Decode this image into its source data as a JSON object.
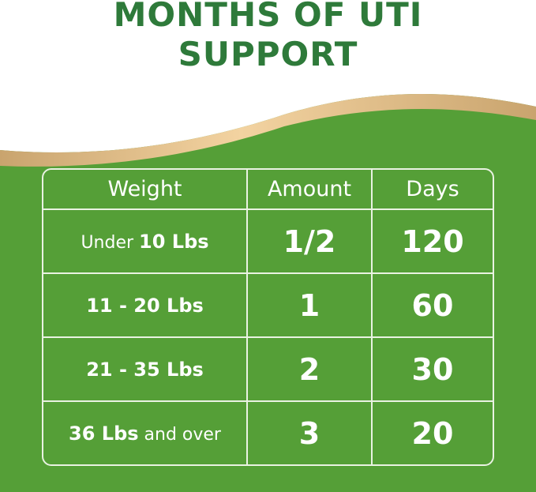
{
  "title_lines": [
    "MONTHS OF UTI",
    "SUPPORT"
  ],
  "colors": {
    "background": "#559f37",
    "title": "#2e7a3a",
    "wave": "#e8c48f"
  },
  "table": {
    "headers": [
      "Weight",
      "Amount",
      "Days"
    ],
    "rows": [
      {
        "weight_prefix": "Under ",
        "weight_bold": "10 Lbs",
        "weight_suffix": "",
        "amount": "1/2",
        "days": "120"
      },
      {
        "weight_prefix": "",
        "weight_bold": "11 - 20 Lbs",
        "weight_suffix": "",
        "amount": "1",
        "days": "60"
      },
      {
        "weight_prefix": "",
        "weight_bold": "21 - 35 Lbs",
        "weight_suffix": "",
        "amount": "2",
        "days": "30"
      },
      {
        "weight_prefix": "",
        "weight_bold": "36 Lbs",
        "weight_suffix": " and over",
        "amount": "3",
        "days": "20"
      }
    ]
  }
}
